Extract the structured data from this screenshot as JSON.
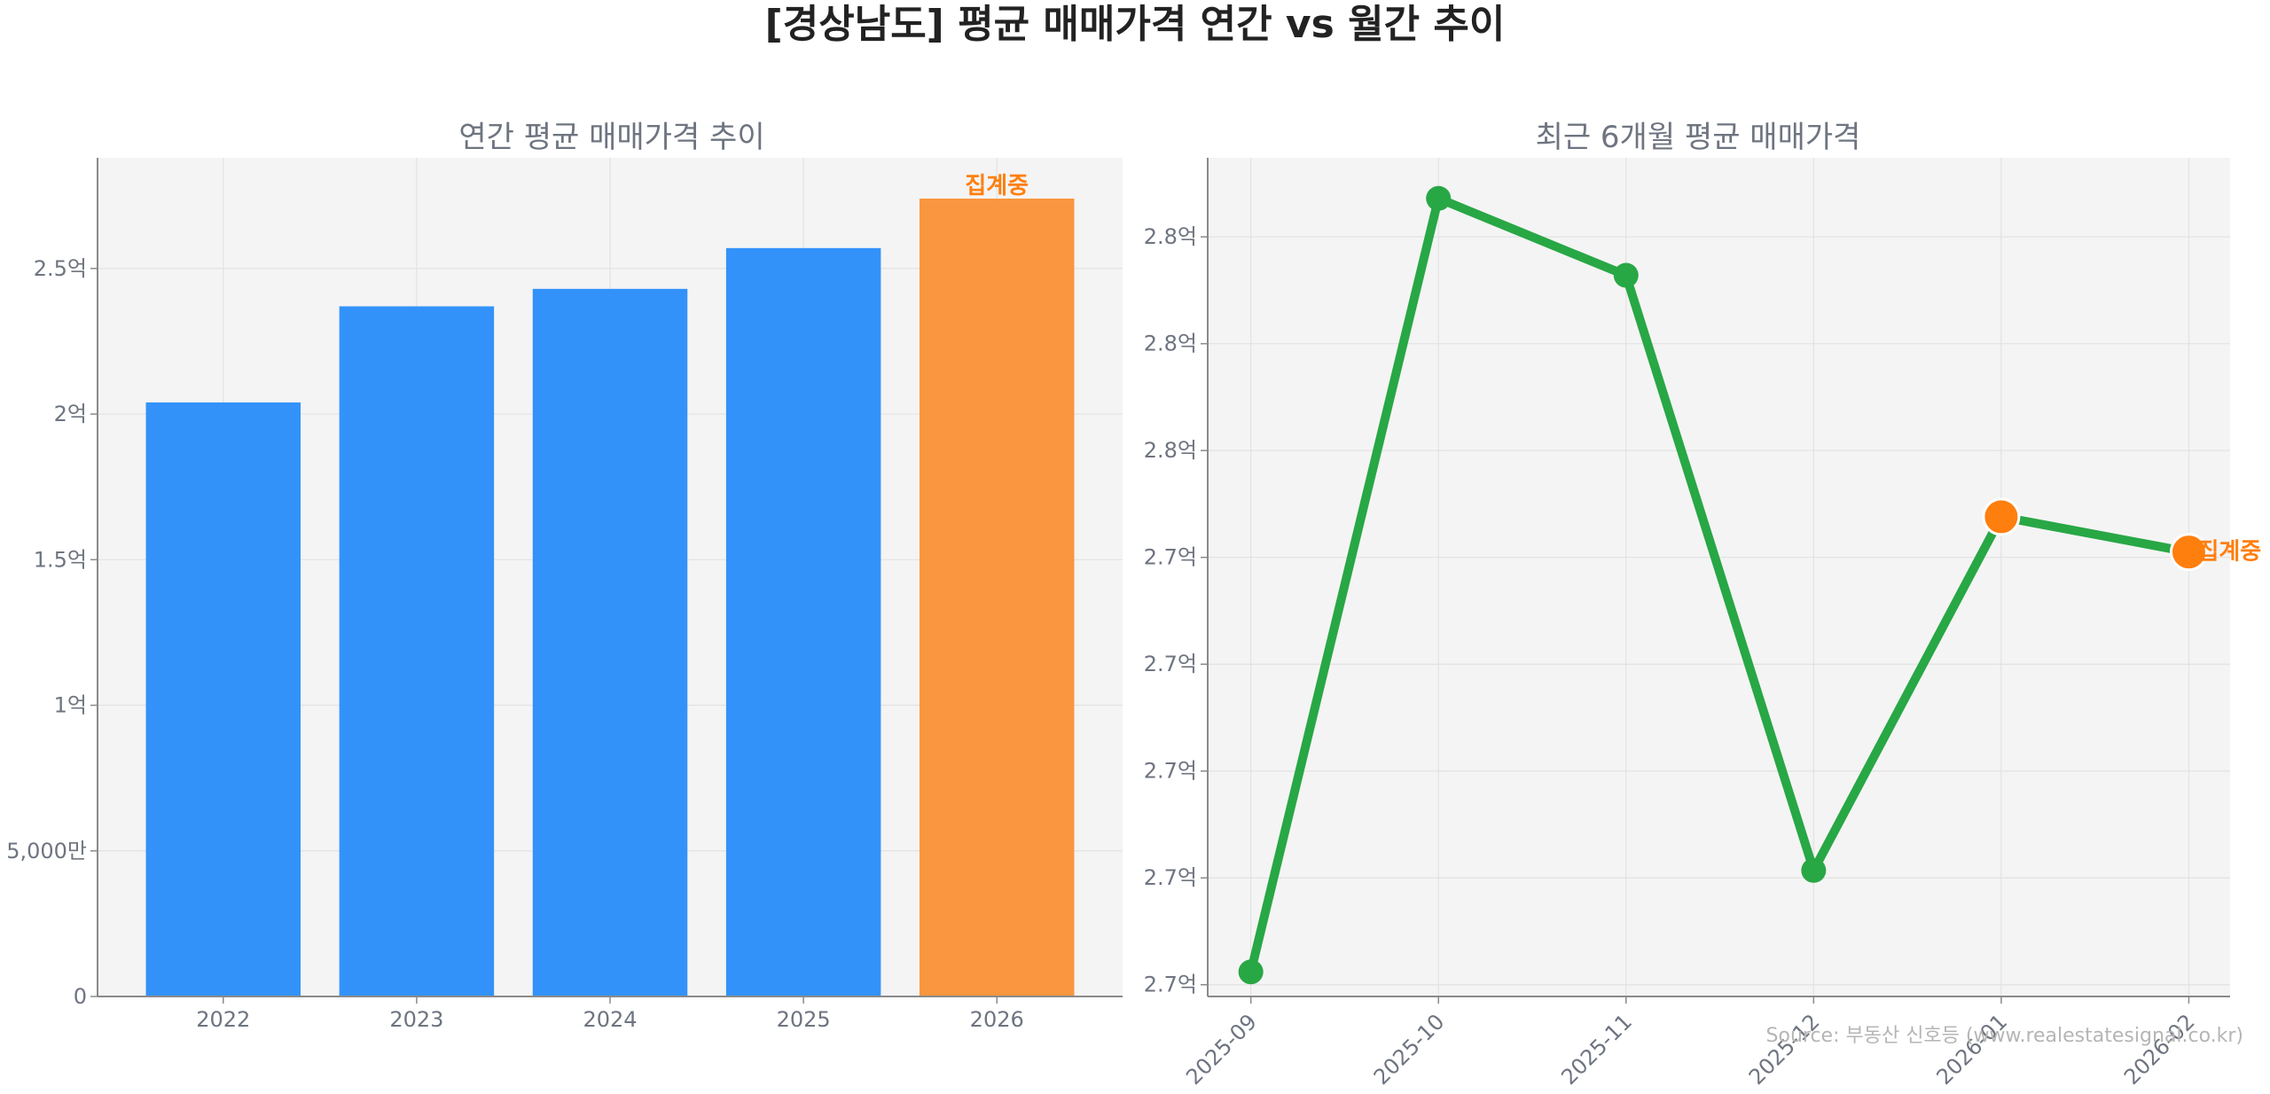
{
  "title": "[경상남도] 평균 매매가격 연간 vs 월간 추이",
  "source": "Source: 부동산 신호등 (www.realestatesignal.co.kr)",
  "colors": {
    "bar": "#3392fa",
    "highlight": "#f9963f",
    "line": "#28a745",
    "marker_current": "#ff7f0e",
    "panel_bg": "#f4f4f4"
  },
  "chart_data": [
    {
      "type": "bar",
      "title": "연간 평균 매매가격 추이",
      "categories": [
        "2022",
        "2023",
        "2024",
        "2025",
        "2026"
      ],
      "values": [
        204000000,
        237000000,
        243000000,
        257000000,
        274000000
      ],
      "highlight_index": 4,
      "highlight_label": "집계중",
      "ylim": [
        0,
        288000000
      ],
      "yticks": [
        0,
        50000000,
        100000000,
        150000000,
        200000000,
        250000000
      ],
      "ytick_labels": [
        "0",
        "5,000만",
        "1억",
        "1.5억",
        "2억",
        "2.5억"
      ],
      "grid": true
    },
    {
      "type": "line",
      "title": "최근 6개월 평균 매매가격",
      "x": [
        "2025-09",
        "2025-10",
        "2025-11",
        "2025-12",
        "2026-01",
        "2026-02"
      ],
      "values": [
        269620000,
        276860000,
        276140000,
        270570000,
        273880000,
        273550000
      ],
      "in_progress_from_index": 4,
      "in_progress_label": "집계중",
      "ylim": [
        269390000,
        277240000
      ],
      "yticks": [
        269500000,
        270500000,
        271500000,
        272500000,
        273500000,
        274500000,
        275500000,
        276500000
      ],
      "ytick_labels": [
        "2.7억",
        "2.7억",
        "2.7억",
        "2.7억",
        "2.7억",
        "2.8억",
        "2.8억",
        "2.8억"
      ],
      "grid": true
    }
  ]
}
